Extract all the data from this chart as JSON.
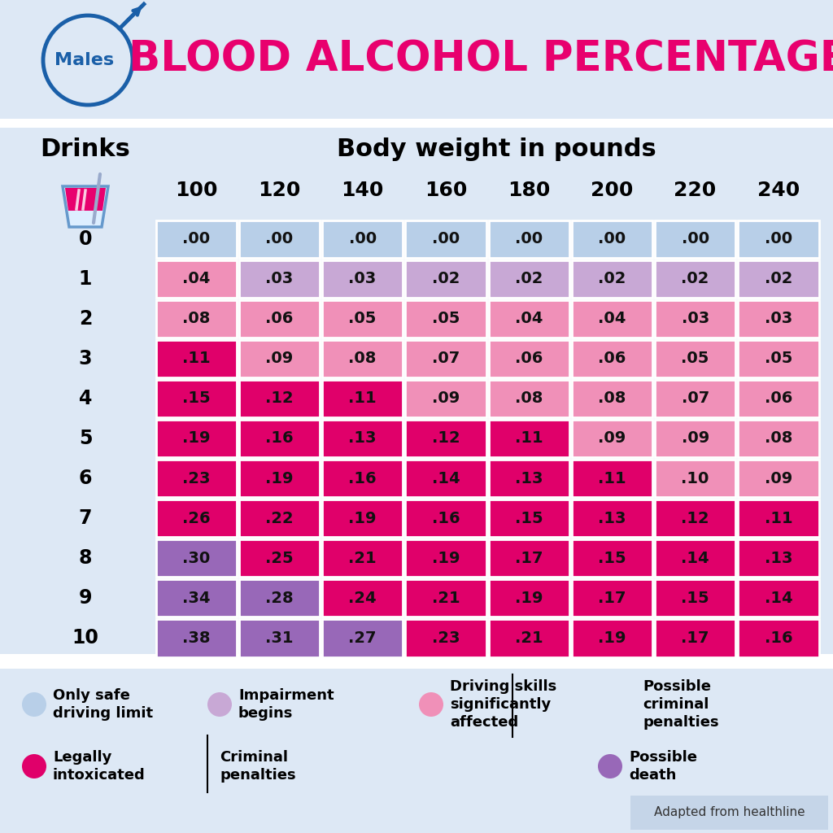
{
  "title": "BLOOD ALCOHOL PERCENTAGE",
  "weights": [
    100,
    120,
    140,
    160,
    180,
    200,
    220,
    240
  ],
  "drinks": [
    0,
    1,
    2,
    3,
    4,
    5,
    6,
    7,
    8,
    9,
    10
  ],
  "table": [
    [
      ".00",
      ".00",
      ".00",
      ".00",
      ".00",
      ".00",
      ".00",
      ".00"
    ],
    [
      ".04",
      ".03",
      ".03",
      ".02",
      ".02",
      ".02",
      ".02",
      ".02"
    ],
    [
      ".08",
      ".06",
      ".05",
      ".05",
      ".04",
      ".04",
      ".03",
      ".03"
    ],
    [
      ".11",
      ".09",
      ".08",
      ".07",
      ".06",
      ".06",
      ".05",
      ".05"
    ],
    [
      ".15",
      ".12",
      ".11",
      ".09",
      ".08",
      ".08",
      ".07",
      ".06"
    ],
    [
      ".19",
      ".16",
      ".13",
      ".12",
      ".11",
      ".09",
      ".09",
      ".08"
    ],
    [
      ".23",
      ".19",
      ".16",
      ".14",
      ".13",
      ".11",
      ".10",
      ".09"
    ],
    [
      ".26",
      ".22",
      ".19",
      ".16",
      ".15",
      ".13",
      ".12",
      ".11"
    ],
    [
      ".30",
      ".25",
      ".21",
      ".19",
      ".17",
      ".15",
      ".14",
      ".13"
    ],
    [
      ".34",
      ".28",
      ".24",
      ".21",
      ".19",
      ".17",
      ".15",
      ".14"
    ],
    [
      ".38",
      ".31",
      ".27",
      ".23",
      ".21",
      ".19",
      ".17",
      ".16"
    ]
  ],
  "cell_colors": [
    [
      "blue",
      "blue",
      "blue",
      "blue",
      "blue",
      "blue",
      "blue",
      "blue"
    ],
    [
      "hotpink",
      "lavender",
      "lavender",
      "lavender",
      "lavender",
      "lavender",
      "lavender",
      "lavender"
    ],
    [
      "hotpink",
      "lightpink",
      "lightpink",
      "lightpink",
      "lightpink",
      "lightpink",
      "lightpink",
      "lightpink"
    ],
    [
      "magenta",
      "lightpink",
      "lightpink",
      "lightpink",
      "lightpink",
      "lightpink",
      "lightpink",
      "lightpink"
    ],
    [
      "magenta",
      "magenta",
      "magenta",
      "lightpink",
      "lightpink",
      "lightpink",
      "lightpink",
      "lightpink"
    ],
    [
      "magenta",
      "magenta",
      "magenta",
      "magenta",
      "magenta",
      "lightpink",
      "lightpink",
      "lightpink"
    ],
    [
      "magenta",
      "magenta",
      "magenta",
      "magenta",
      "magenta",
      "magenta",
      "lightpink",
      "lightpink"
    ],
    [
      "magenta",
      "magenta",
      "magenta",
      "magenta",
      "magenta",
      "magenta",
      "magenta",
      "magenta"
    ],
    [
      "purple",
      "magenta",
      "magenta",
      "magenta",
      "magenta",
      "magenta",
      "magenta",
      "magenta"
    ],
    [
      "purple",
      "purple",
      "magenta",
      "magenta",
      "magenta",
      "magenta",
      "magenta",
      "magenta"
    ],
    [
      "purple",
      "purple",
      "purple",
      "magenta",
      "magenta",
      "magenta",
      "magenta",
      "magenta"
    ]
  ],
  "color_map": {
    "blue": "#b8cfe8",
    "lavender": "#c8a8d5",
    "lightpink": "#f090b8",
    "hotpink": "#f090b8",
    "magenta": "#e0006a",
    "purple": "#9868b8"
  },
  "bg_color": "#dde8f5",
  "male_color": "#1a5fa8",
  "title_color": "#e8006e",
  "source_text": "Adapted from healthline",
  "source_bg": "#c5d5e8"
}
